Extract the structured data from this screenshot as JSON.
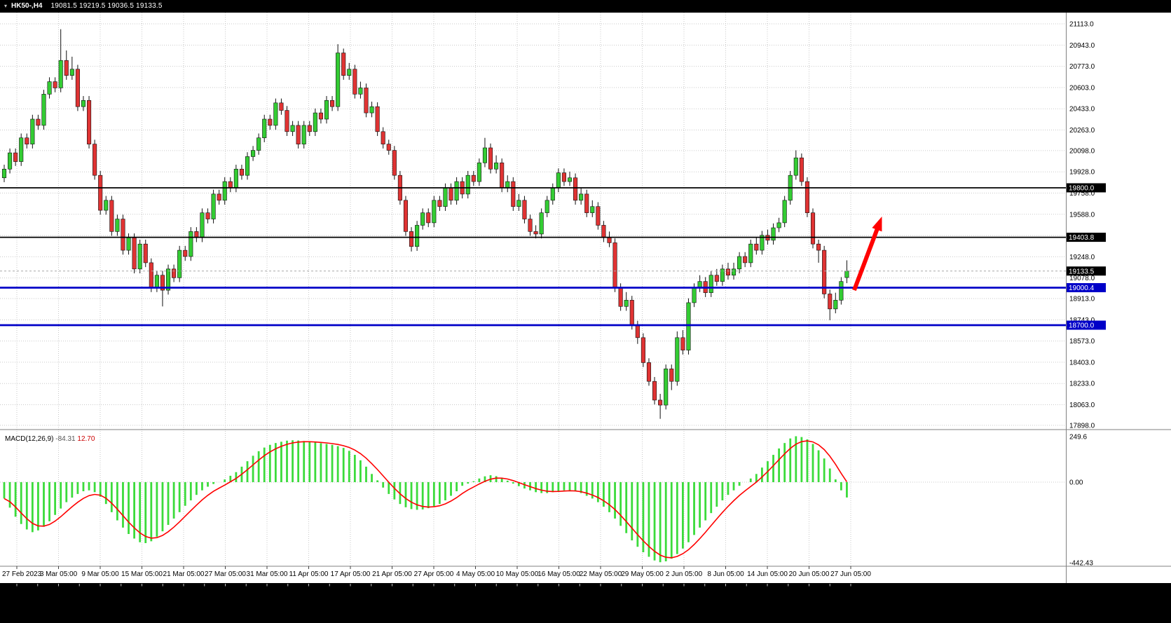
{
  "window": {
    "titlebar": {
      "collapse_icon": "▾",
      "symbol_period": "HK50-,H4",
      "ohlc_text": "19081.5 19219.5 19036.5 19133.5"
    }
  },
  "colors": {
    "bg": "#FFFFFF",
    "bar": "#000000",
    "grid": "#C9C9C9",
    "sep": "#808080",
    "axis_text": "#000000",
    "label_text": "#FFFFFF",
    "up": "#33CC33",
    "down": "#E03333",
    "outline": "#101010",
    "hist": "#3BDB3B",
    "signal": "#FF0000",
    "black_line": "#000000",
    "blue_line": "#0000C8",
    "arrow": "#FF0000",
    "macd_main_val": "#555555",
    "macd_signal_val": "#CC0000"
  },
  "chart_data": [
    {
      "type": "candlestick",
      "title": "HK50-,H4",
      "symbol": "HK50-",
      "timeframe": "H4",
      "current_bar": {
        "open": 19081.5,
        "high": 19219.5,
        "low": 19036.5,
        "close": 19133.5
      },
      "last_price": 19133.5,
      "last_price_label": "19133.5",
      "ylim": [
        17898,
        21113
      ],
      "y_ticks": [
        21113,
        20943,
        20773,
        20603,
        20433,
        20263,
        20098,
        19928,
        19758,
        19588,
        19418,
        19248,
        19078,
        18913,
        18743,
        18573,
        18403,
        18233,
        18063,
        17898
      ],
      "x_tick_labels": [
        "27 Feb 2023",
        "3 Mar 05:00",
        "9 Mar 05:00",
        "15 Mar 05:00",
        "21 Mar 05:00",
        "27 Mar 05:00",
        "31 Mar 05:00",
        "11 Apr 05:00",
        "17 Apr 05:00",
        "21 Apr 05:00",
        "27 Apr 05:00",
        "4 May 05:00",
        "10 May 05:00",
        "16 May 05:00",
        "22 May 05:00",
        "29 May 05:00",
        "2 Jun 05:00",
        "8 Jun 05:00",
        "14 Jun 05:00",
        "20 Jun 05:00",
        "27 Jun 05:00"
      ],
      "levels": [
        {
          "price": 19800.0,
          "label": "19800.0",
          "color": "#000000",
          "width": 1.8
        },
        {
          "price": 19403.8,
          "label": "19403.8",
          "color": "#000000",
          "width": 1.8
        },
        {
          "price": 19000.4,
          "label": "19000.4",
          "color": "#0000C8",
          "width": 2.8
        },
        {
          "price": 18700.0,
          "label": "18700.0",
          "color": "#0000C8",
          "width": 2.8
        }
      ],
      "annotations": [
        {
          "type": "up-arrow",
          "color": "#FF0000",
          "from": {
            "bar": 150.3,
            "price": 18980
          },
          "to": {
            "bar": 155.2,
            "price": 19570
          }
        }
      ],
      "candles": [
        [
          19880,
          19985,
          19845,
          19950
        ],
        [
          19950,
          20115,
          19915,
          20080
        ],
        [
          20080,
          20115,
          19975,
          20010
        ],
        [
          20010,
          20235,
          19975,
          20200
        ],
        [
          20200,
          20235,
          20115,
          20150
        ],
        [
          20150,
          20385,
          20115,
          20350
        ],
        [
          20350,
          20385,
          20265,
          20300
        ],
        [
          20300,
          20585,
          20265,
          20550
        ],
        [
          20550,
          20685,
          20515,
          20650
        ],
        [
          20650,
          20685,
          20565,
          20600
        ],
        [
          20600,
          21070,
          20565,
          20820
        ],
        [
          20820,
          20900,
          20665,
          20700
        ],
        [
          20700,
          20850,
          20665,
          20750
        ],
        [
          20750,
          20785,
          20415,
          20450
        ],
        [
          20450,
          20535,
          20415,
          20500
        ],
        [
          20500,
          20535,
          20115,
          20150
        ],
        [
          20150,
          20185,
          19865,
          19900
        ],
        [
          19900,
          19935,
          19585,
          19620
        ],
        [
          19620,
          19735,
          19585,
          19700
        ],
        [
          19700,
          19735,
          19415,
          19450
        ],
        [
          19450,
          19585,
          19415,
          19550
        ],
        [
          19550,
          19585,
          19265,
          19300
        ],
        [
          19300,
          19435,
          19265,
          19400
        ],
        [
          19400,
          19435,
          19115,
          19150
        ],
        [
          19150,
          19385,
          19115,
          19350
        ],
        [
          19350,
          19385,
          19165,
          19200
        ],
        [
          19200,
          19235,
          18965,
          19000
        ],
        [
          19000,
          19135,
          18965,
          19100
        ],
        [
          19100,
          19135,
          18850,
          18980
        ],
        [
          18980,
          19185,
          18945,
          19150
        ],
        [
          19150,
          19185,
          19045,
          19080
        ],
        [
          19080,
          19335,
          19045,
          19300
        ],
        [
          19300,
          19335,
          19215,
          19250
        ],
        [
          19250,
          19485,
          19215,
          19450
        ],
        [
          19450,
          19485,
          19365,
          19400
        ],
        [
          19400,
          19635,
          19365,
          19600
        ],
        [
          19600,
          19635,
          19515,
          19550
        ],
        [
          19550,
          19785,
          19515,
          19750
        ],
        [
          19750,
          19785,
          19665,
          19700
        ],
        [
          19700,
          19885,
          19665,
          19850
        ],
        [
          19850,
          19885,
          19765,
          19800
        ],
        [
          19800,
          19985,
          19765,
          19950
        ],
        [
          19950,
          19985,
          19865,
          19900
        ],
        [
          19900,
          20085,
          19865,
          20050
        ],
        [
          20050,
          20135,
          20015,
          20100
        ],
        [
          20100,
          20235,
          20065,
          20200
        ],
        [
          20200,
          20385,
          20165,
          20350
        ],
        [
          20350,
          20385,
          20265,
          20300
        ],
        [
          20300,
          20515,
          20265,
          20480
        ],
        [
          20480,
          20515,
          20385,
          20420
        ],
        [
          20420,
          20455,
          20215,
          20250
        ],
        [
          20250,
          20335,
          20215,
          20300
        ],
        [
          20300,
          20335,
          20115,
          20150
        ],
        [
          20150,
          20335,
          20115,
          20300
        ],
        [
          20300,
          20335,
          20215,
          20250
        ],
        [
          20250,
          20435,
          20215,
          20400
        ],
        [
          20400,
          20435,
          20315,
          20350
        ],
        [
          20350,
          20535,
          20315,
          20500
        ],
        [
          20500,
          20535,
          20415,
          20450
        ],
        [
          20450,
          20950,
          20415,
          20880
        ],
        [
          20880,
          20915,
          20665,
          20700
        ],
        [
          20700,
          20800,
          20665,
          20750
        ],
        [
          20750,
          20785,
          20515,
          20550
        ],
        [
          20550,
          20650,
          20515,
          20600
        ],
        [
          20600,
          20635,
          20365,
          20400
        ],
        [
          20400,
          20490,
          20365,
          20450
        ],
        [
          20450,
          20485,
          20215,
          20250
        ],
        [
          20250,
          20285,
          20115,
          20150
        ],
        [
          20150,
          20185,
          20065,
          20100
        ],
        [
          20100,
          20135,
          19865,
          19900
        ],
        [
          19900,
          19935,
          19665,
          19700
        ],
        [
          19700,
          19735,
          19415,
          19450
        ],
        [
          19450,
          19485,
          19290,
          19330
        ],
        [
          19330,
          19535,
          19295,
          19500
        ],
        [
          19500,
          19635,
          19465,
          19600
        ],
        [
          19600,
          19635,
          19485,
          19520
        ],
        [
          19520,
          19735,
          19485,
          19700
        ],
        [
          19700,
          19735,
          19615,
          19650
        ],
        [
          19650,
          19835,
          19615,
          19800
        ],
        [
          19800,
          19835,
          19665,
          19700
        ],
        [
          19700,
          19885,
          19665,
          19850
        ],
        [
          19850,
          19885,
          19715,
          19750
        ],
        [
          19750,
          19935,
          19715,
          19900
        ],
        [
          19900,
          19935,
          19815,
          19850
        ],
        [
          19850,
          20035,
          19815,
          20000
        ],
        [
          20000,
          20200,
          19965,
          20120
        ],
        [
          20120,
          20155,
          19915,
          19950
        ],
        [
          19950,
          20060,
          19915,
          20000
        ],
        [
          20000,
          20035,
          19765,
          19800
        ],
        [
          19800,
          19900,
          19765,
          19850
        ],
        [
          19850,
          19885,
          19615,
          19650
        ],
        [
          19650,
          19750,
          19615,
          19700
        ],
        [
          19700,
          19735,
          19515,
          19550
        ],
        [
          19550,
          19585,
          19415,
          19450
        ],
        [
          19450,
          19500,
          19395,
          19430
        ],
        [
          19430,
          19635,
          19395,
          19600
        ],
        [
          19600,
          19735,
          19565,
          19700
        ],
        [
          19700,
          19835,
          19665,
          19800
        ],
        [
          19800,
          19955,
          19765,
          19920
        ],
        [
          19920,
          19955,
          19815,
          19850
        ],
        [
          19850,
          19930,
          19815,
          19880
        ],
        [
          19880,
          19915,
          19665,
          19700
        ],
        [
          19700,
          19800,
          19665,
          19750
        ],
        [
          19750,
          19785,
          19565,
          19600
        ],
        [
          19600,
          19700,
          19565,
          19650
        ],
        [
          19650,
          19685,
          19465,
          19500
        ],
        [
          19500,
          19535,
          19365,
          19400
        ],
        [
          19400,
          19450,
          19325,
          19360
        ],
        [
          19360,
          19395,
          18965,
          19000
        ],
        [
          19000,
          19035,
          18815,
          18850
        ],
        [
          18850,
          18965,
          18815,
          18900
        ],
        [
          18900,
          18935,
          18665,
          18700
        ],
        [
          18700,
          18735,
          18550,
          18600
        ],
        [
          18600,
          18635,
          18365,
          18400
        ],
        [
          18400,
          18435,
          18215,
          18250
        ],
        [
          18250,
          18285,
          18065,
          18100
        ],
        [
          18100,
          18150,
          17950,
          18060
        ],
        [
          18060,
          18385,
          18025,
          18350
        ],
        [
          18350,
          18385,
          18180,
          18250
        ],
        [
          18250,
          18650,
          18215,
          18600
        ],
        [
          18600,
          18660,
          18465,
          18500
        ],
        [
          18500,
          18915,
          18465,
          18880
        ],
        [
          18880,
          19035,
          18845,
          19000
        ],
        [
          19000,
          19100,
          18965,
          19050
        ],
        [
          19050,
          19085,
          18925,
          18960
        ],
        [
          18960,
          19135,
          18925,
          19100
        ],
        [
          19100,
          19150,
          19015,
          19050
        ],
        [
          19050,
          19185,
          19015,
          19150
        ],
        [
          19150,
          19200,
          19065,
          19100
        ],
        [
          19100,
          19200,
          19065,
          19150
        ],
        [
          19150,
          19285,
          19115,
          19250
        ],
        [
          19250,
          19285,
          19165,
          19200
        ],
        [
          19200,
          19385,
          19165,
          19350
        ],
        [
          19350,
          19400,
          19265,
          19300
        ],
        [
          19300,
          19455,
          19265,
          19420
        ],
        [
          19420,
          19465,
          19345,
          19380
        ],
        [
          19380,
          19515,
          19345,
          19480
        ],
        [
          19480,
          19560,
          19445,
          19520
        ],
        [
          19520,
          19735,
          19485,
          19700
        ],
        [
          19700,
          19935,
          19665,
          19900
        ],
        [
          19900,
          20100,
          19865,
          20040
        ],
        [
          20040,
          20075,
          19815,
          19850
        ],
        [
          19850,
          19885,
          19565,
          19600
        ],
        [
          19600,
          19635,
          19315,
          19350
        ],
        [
          19350,
          19385,
          19200,
          19300
        ],
        [
          19300,
          19335,
          18915,
          18950
        ],
        [
          18950,
          18985,
          18740,
          18830
        ],
        [
          18830,
          18960,
          18795,
          18900
        ],
        [
          18900,
          19085,
          18865,
          19050
        ],
        [
          19081.5,
          19219.5,
          19036.5,
          19133.5
        ]
      ]
    },
    {
      "type": "bar",
      "title": "MACD(12,26,9)",
      "main_value": "-84.31",
      "signal_value": "12.70",
      "ylim": [
        -442.43,
        249.6
      ],
      "y_axis_labels": [
        {
          "text": "249.6",
          "value": 249.6
        },
        {
          "text": "0.00",
          "value": 0
        },
        {
          "text": "-442.43",
          "value": -442.43
        }
      ],
      "legend": "MACD histogram (green bars) with signal line (red)",
      "values": [
        -90,
        -140,
        -190,
        -230,
        -260,
        -275,
        -265,
        -245,
        -215,
        -180,
        -145,
        -110,
        -85,
        -65,
        -50,
        -45,
        -55,
        -80,
        -120,
        -165,
        -210,
        -250,
        -285,
        -310,
        -330,
        -335,
        -325,
        -300,
        -270,
        -235,
        -200,
        -165,
        -130,
        -100,
        -70,
        -45,
        -25,
        -10,
        0,
        15,
        35,
        55,
        85,
        115,
        145,
        170,
        190,
        205,
        215,
        222,
        228,
        230,
        229,
        226,
        222,
        218,
        214,
        210,
        205,
        198,
        188,
        172,
        150,
        120,
        85,
        45,
        10,
        -30,
        -65,
        -95,
        -120,
        -138,
        -148,
        -152,
        -150,
        -143,
        -132,
        -120,
        -100,
        -75,
        -50,
        -20,
        -8,
        5,
        20,
        32,
        38,
        33,
        22,
        8,
        -8,
        -22,
        -35,
        -45,
        -55,
        -60,
        -60,
        -55,
        -50,
        -45,
        -45,
        -50,
        -60,
        -75,
        -90,
        -110,
        -135,
        -165,
        -200,
        -240,
        -280,
        -320,
        -355,
        -385,
        -410,
        -430,
        -440,
        -435,
        -420,
        -395,
        -365,
        -330,
        -290,
        -250,
        -210,
        -170,
        -135,
        -100,
        -70,
        -45,
        -20,
        0,
        20,
        45,
        80,
        115,
        150,
        185,
        215,
        240,
        252,
        248,
        235,
        210,
        175,
        130,
        75,
        15,
        -45,
        -84.31
      ]
    }
  ]
}
